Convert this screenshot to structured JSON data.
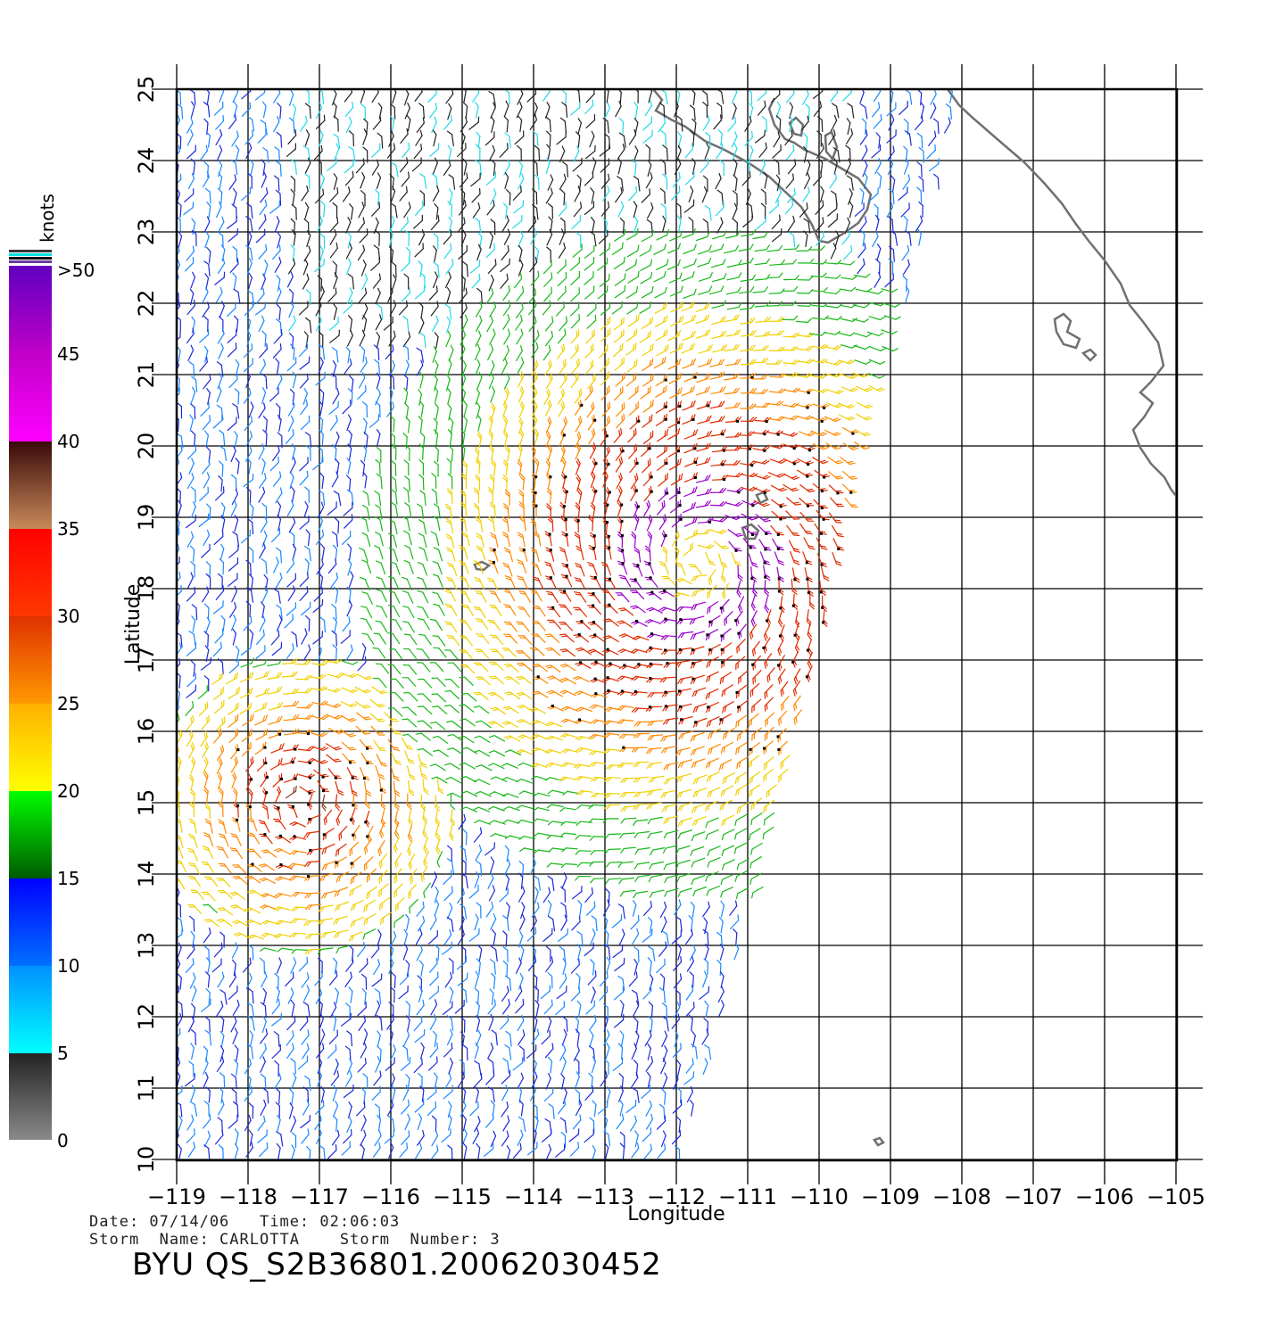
{
  "map": {
    "lon_ticks": [
      -119,
      -118,
      -117,
      -116,
      -115,
      -114,
      -113,
      -112,
      -111,
      -110,
      -109,
      -108,
      -107,
      -106,
      -105
    ],
    "lat_ticks": [
      10,
      11,
      12,
      13,
      14,
      15,
      16,
      17,
      18,
      19,
      20,
      21,
      22,
      23,
      24,
      25
    ],
    "x_title": "Longitude",
    "y_title": "Latitude",
    "storm_center": {
      "lon": -111.7,
      "lat": 18.35
    },
    "swath_edge_lon": {
      "north": -108.0,
      "south": -111.9
    }
  },
  "colorbar": {
    "title": "knots",
    "labels": [
      "0",
      "5",
      "10",
      "15",
      "20",
      "25",
      "30",
      "35",
      "40",
      "45",
      ">50"
    ],
    "colors": {
      "0-5": [
        "#808080",
        "#2a2a2a"
      ],
      "5-10": [
        "#00ffff",
        "#0066ff"
      ],
      "10-15": [
        "#0066ff",
        "#0000ff"
      ],
      "15-20": [
        "#006600",
        "#00ff00"
      ],
      "20-25": [
        "#ffff00",
        "#ffaa00"
      ],
      "25-30": [
        "#ff9900",
        "#ee3300"
      ],
      "30-35": [
        "#ff3300",
        "#ff0000"
      ],
      "35-40": [
        "#c08050",
        "#3a0a0a"
      ],
      "40-45": [
        "#ff00ff",
        "#c000c0"
      ],
      "45-50": [
        "#c000c0",
        "#7000b0"
      ],
      ">50": [
        "#6000c0",
        "#3000a0"
      ]
    }
  },
  "info": {
    "line1": "Date: 07/14/06   Time: 02:06:03",
    "line2": "Storm  Name: CARLOTTA    Storm  Number: 3",
    "file_id": "BYU  QS_S2B36801.20062030452"
  }
}
